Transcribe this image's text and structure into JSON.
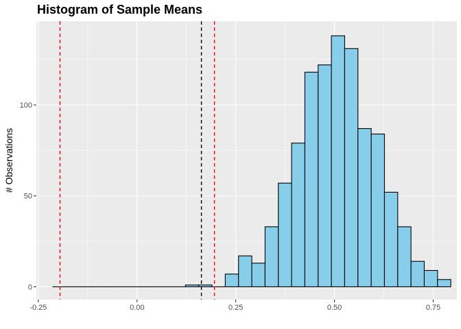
{
  "chart_data": {
    "type": "bar",
    "title": "Histogram of Sample Means",
    "xlabel": "",
    "ylabel": "# Observations",
    "xlim": [
      -0.255,
      0.81
    ],
    "ylim": [
      -7,
      146
    ],
    "xticks": [
      -0.25,
      0.0,
      0.25,
      0.5,
      0.75
    ],
    "xtick_labels": [
      "-0.25",
      "0.00",
      "0.25",
      "0.50",
      "0.75"
    ],
    "yticks": [
      0,
      50,
      100
    ],
    "ytick_labels": [
      "0",
      "50",
      "100"
    ],
    "grid": true,
    "bin_width": 0.0336,
    "bins": [
      {
        "x0": -0.2134,
        "x1": -0.1798,
        "count": 0
      },
      {
        "x0": -0.1798,
        "x1": -0.1462,
        "count": 0
      },
      {
        "x0": -0.1462,
        "x1": -0.1126,
        "count": 0
      },
      {
        "x0": -0.1126,
        "x1": -0.079,
        "count": 0
      },
      {
        "x0": -0.079,
        "x1": -0.0454,
        "count": 0
      },
      {
        "x0": -0.0454,
        "x1": -0.0118,
        "count": 0
      },
      {
        "x0": -0.0118,
        "x1": 0.0218,
        "count": 0
      },
      {
        "x0": 0.0218,
        "x1": 0.0554,
        "count": 0
      },
      {
        "x0": 0.0554,
        "x1": 0.089,
        "count": 0
      },
      {
        "x0": 0.089,
        "x1": 0.1226,
        "count": 0
      },
      {
        "x0": 0.1226,
        "x1": 0.1562,
        "count": 1
      },
      {
        "x0": 0.1562,
        "x1": 0.1898,
        "count": 1
      },
      {
        "x0": 0.1898,
        "x1": 0.2234,
        "count": 0
      },
      {
        "x0": 0.2234,
        "x1": 0.257,
        "count": 7
      },
      {
        "x0": 0.257,
        "x1": 0.2906,
        "count": 17
      },
      {
        "x0": 0.2906,
        "x1": 0.3242,
        "count": 13
      },
      {
        "x0": 0.3242,
        "x1": 0.3578,
        "count": 33
      },
      {
        "x0": 0.3578,
        "x1": 0.3914,
        "count": 57
      },
      {
        "x0": 0.3914,
        "x1": 0.425,
        "count": 79
      },
      {
        "x0": 0.425,
        "x1": 0.4586,
        "count": 118
      },
      {
        "x0": 0.4586,
        "x1": 0.4922,
        "count": 122
      },
      {
        "x0": 0.4922,
        "x1": 0.5258,
        "count": 138
      },
      {
        "x0": 0.5258,
        "x1": 0.5594,
        "count": 131
      },
      {
        "x0": 0.5594,
        "x1": 0.593,
        "count": 87
      },
      {
        "x0": 0.593,
        "x1": 0.6266,
        "count": 84
      },
      {
        "x0": 0.6266,
        "x1": 0.6602,
        "count": 52
      },
      {
        "x0": 0.6602,
        "x1": 0.6938,
        "count": 33
      },
      {
        "x0": 0.6938,
        "x1": 0.7274,
        "count": 14
      },
      {
        "x0": 0.7274,
        "x1": 0.761,
        "count": 9
      },
      {
        "x0": 0.761,
        "x1": 0.7946,
        "count": 4
      }
    ],
    "vlines": [
      {
        "x": -0.195,
        "color": "#ff0000",
        "style": "dashed"
      },
      {
        "x": 0.163,
        "color": "#000000",
        "style": "dashed"
      },
      {
        "x": 0.196,
        "color": "#ff0000",
        "style": "dashed"
      }
    ],
    "colors": {
      "bar_fill": "#87ceeb",
      "bar_stroke": "#000000",
      "panel_bg": "#ebebeb",
      "grid_major": "#ffffff"
    }
  }
}
